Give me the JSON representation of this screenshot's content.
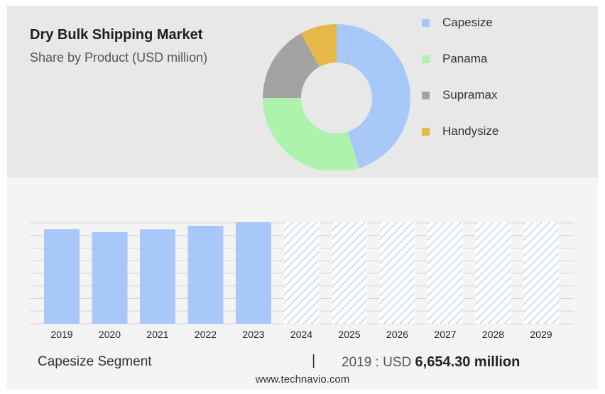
{
  "header": {
    "title": "Dry Bulk Shipping Market",
    "subtitle": "Share by Product (USD million)"
  },
  "chart_data": [
    {
      "type": "pie",
      "labels": [
        "Capesize",
        "Panama",
        "Supramax",
        "Handysize"
      ],
      "values": [
        45,
        30,
        17,
        8
      ],
      "colors": [
        "#a8c8fa",
        "#adf2ad",
        "#a3a3a3",
        "#e6b84a"
      ],
      "legend": "right"
    },
    {
      "type": "bar",
      "categories": [
        "2019",
        "2020",
        "2021",
        "2022",
        "2023",
        "2024",
        "2025",
        "2026",
        "2027",
        "2028",
        "2029"
      ],
      "values": [
        6654.3,
        6450,
        6650,
        6900,
        7150,
        7150,
        7150,
        7150,
        7150,
        7150,
        7150
      ],
      "forecast_from": "2024",
      "ylim": [
        0,
        7150
      ],
      "grid": true,
      "color": "#a8c8fa"
    }
  ],
  "footer": {
    "segment": "Capesize Segment",
    "separator": "|",
    "year_label": "2019 : USD",
    "value": "6,654.30 million",
    "site": "www.technavio.com"
  }
}
